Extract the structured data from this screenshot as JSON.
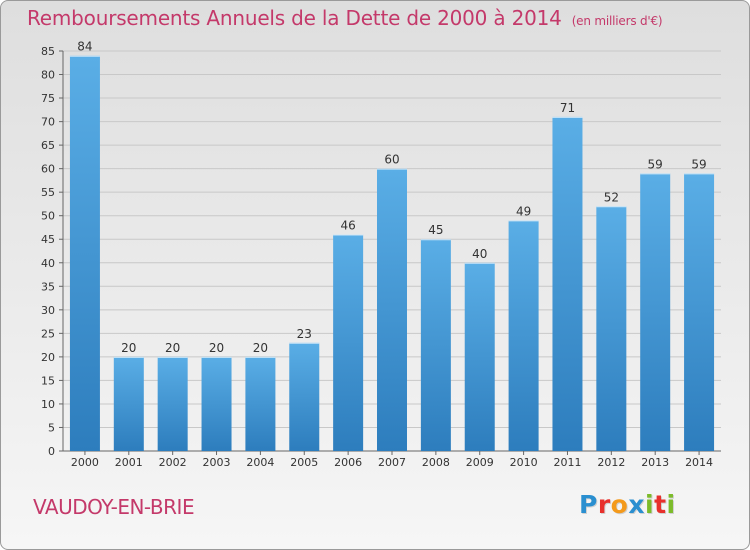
{
  "header": {
    "title": "Remboursements Annuels de la Dette de 2000 à 2014",
    "unit": "(en milliers d'€)"
  },
  "footer": {
    "place": "VAUDOY-EN-BRIE",
    "logo": [
      "P",
      "r",
      "o",
      "x",
      "i",
      "t",
      "i"
    ],
    "logo_colors": [
      "#2a8fd0",
      "#e8302c",
      "#f49a1b",
      "#2a8fd0",
      "#7cbb2a",
      "#e8302c",
      "#7cbb2a"
    ]
  },
  "colors": {
    "bar_light": "#5aaee6",
    "bar_dark": "#2d7dbd",
    "grid": "#c8c8c8",
    "title": "#c4396a"
  },
  "chart_data": {
    "type": "bar",
    "categories": [
      "2000",
      "2001",
      "2002",
      "2003",
      "2004",
      "2005",
      "2006",
      "2007",
      "2008",
      "2009",
      "2010",
      "2011",
      "2012",
      "2013",
      "2014"
    ],
    "values": [
      84,
      20,
      20,
      20,
      20,
      23,
      46,
      60,
      45,
      40,
      49,
      71,
      52,
      59,
      59
    ],
    "ylim": [
      0,
      85
    ],
    "yticks": [
      0,
      5,
      10,
      15,
      20,
      25,
      30,
      35,
      40,
      45,
      50,
      55,
      60,
      65,
      70,
      75,
      80,
      85
    ],
    "grid": true
  }
}
